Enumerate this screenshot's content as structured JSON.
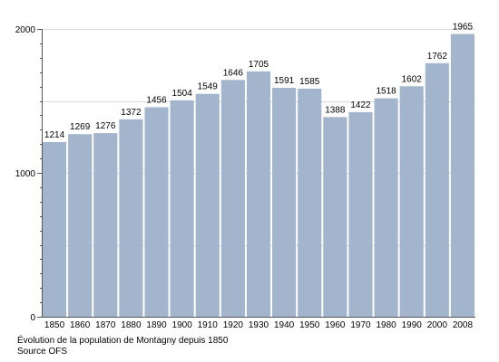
{
  "caption": {
    "line1": "Évolution de la population de Montagny depuis 1850",
    "line2": "Source OFS"
  },
  "chart_data": {
    "type": "bar",
    "categories": [
      "1850",
      "1860",
      "1870",
      "1880",
      "1890",
      "1900",
      "1910",
      "1920",
      "1930",
      "1940",
      "1950",
      "1960",
      "1970",
      "1980",
      "1990",
      "2000",
      "2008"
    ],
    "values": [
      1214,
      1269,
      1276,
      1372,
      1456,
      1504,
      1549,
      1646,
      1705,
      1591,
      1585,
      1388,
      1422,
      1518,
      1602,
      1762,
      1965
    ],
    "ylim": [
      0,
      2000
    ],
    "yticks": [
      0,
      1000,
      2000
    ],
    "grid": true,
    "bar_color": "#a3b5cc"
  }
}
